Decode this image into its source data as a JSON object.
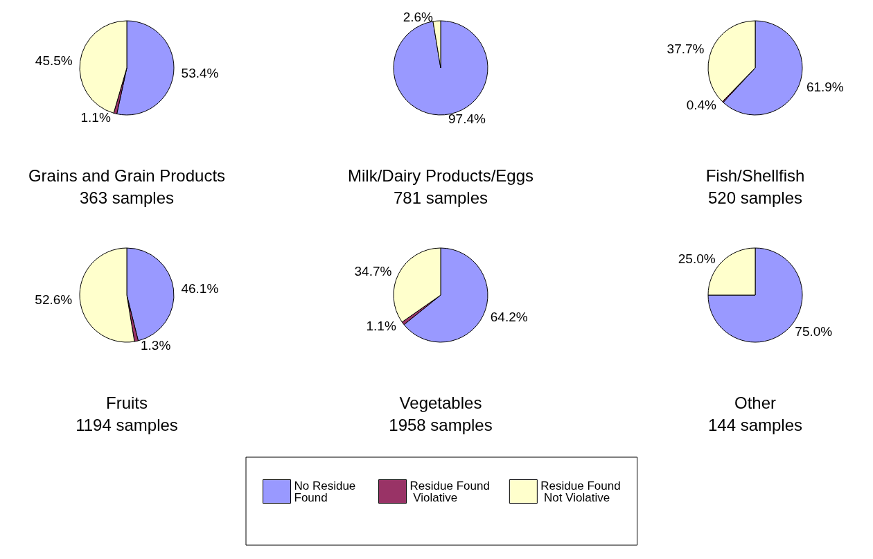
{
  "chart_data": [
    {
      "type": "pie",
      "title": "Grains and Grain Products",
      "subtitle": "363 samples",
      "categories": [
        "No Residue Found",
        "Residue Found Violative",
        "Residue Found Not Violative"
      ],
      "values": [
        53.4,
        1.1,
        45.5
      ],
      "value_labels": [
        "53.4%",
        "1.1%",
        "45.5%"
      ],
      "colors": [
        "#9999ff",
        "#993366",
        "#ffffcc"
      ],
      "legend": "bottom"
    },
    {
      "type": "pie",
      "title": "Milk/Dairy Products/Eggs",
      "subtitle": "781 samples",
      "categories": [
        null,
        null
      ],
      "values": [
        97.4,
        2.6
      ],
      "value_labels": [
        "97.4%",
        "2.6%"
      ],
      "colors": [
        "#9999ff",
        "#ffffcc"
      ]
    },
    {
      "type": "pie",
      "title": "Fish/Shellfish",
      "subtitle": "520 samples",
      "categories": [
        null,
        null,
        null
      ],
      "values": [
        61.9,
        0.4,
        37.7
      ],
      "value_labels": [
        "61.9%",
        "0.4%",
        "37.7%"
      ],
      "colors": [
        "#9999ff",
        "#993366",
        "#ffffcc"
      ]
    },
    {
      "type": "pie",
      "title": "Fruits",
      "subtitle": "1194 samples",
      "categories": [
        null,
        null,
        null
      ],
      "values": [
        46.1,
        1.3,
        52.6
      ],
      "value_labels": [
        "46.1%",
        "1.3%",
        "52.6%"
      ],
      "colors": [
        "#9999ff",
        "#993366",
        "#ffffcc"
      ]
    },
    {
      "type": "pie",
      "title": "Vegetables",
      "subtitle": "1958 samples",
      "categories": [
        null,
        null,
        null
      ],
      "values": [
        64.2,
        1.1,
        34.7
      ],
      "value_labels": [
        "64.2%",
        "1.1%",
        "34.7%"
      ],
      "colors": [
        "#9999ff",
        "#993366",
        "#ffffcc"
      ]
    },
    {
      "type": "pie",
      "title": "Other",
      "subtitle": "144 samples",
      "categories": [
        null,
        null
      ],
      "values": [
        75.0,
        25.0
      ],
      "value_labels": [
        "75.0%",
        "25.0%"
      ],
      "colors": [
        "#9999ff",
        "#ffffcc"
      ]
    }
  ]
}
